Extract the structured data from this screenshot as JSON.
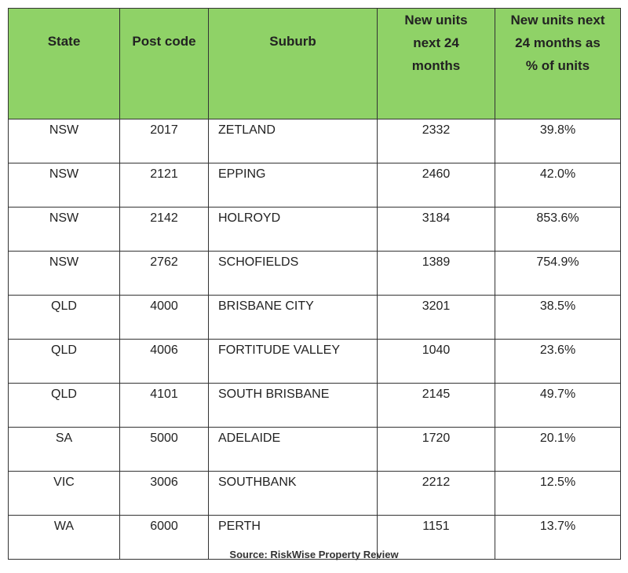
{
  "table": {
    "header": [
      [
        "State"
      ],
      [
        "Post code"
      ],
      [
        "Suburb"
      ],
      [
        "New units",
        "next 24",
        "months"
      ],
      [
        "New units next",
        "24 months as",
        "% of units"
      ]
    ],
    "rows": [
      [
        "NSW",
        "2017",
        "ZETLAND",
        "2332",
        "39.8%"
      ],
      [
        "NSW",
        "2121",
        "EPPING",
        "2460",
        "42.0%"
      ],
      [
        "NSW",
        "2142",
        "HOLROYD",
        "3184",
        "853.6%"
      ],
      [
        "NSW",
        "2762",
        "SCHOFIELDS",
        "1389",
        "754.9%"
      ],
      [
        "QLD",
        "4000",
        "BRISBANE CITY",
        "3201",
        "38.5%"
      ],
      [
        "QLD",
        "4006",
        "FORTITUDE VALLEY",
        "1040",
        "23.6%"
      ],
      [
        "QLD",
        "4101",
        "SOUTH BRISBANE",
        "2145",
        "49.7%"
      ],
      [
        "SA",
        "5000",
        "ADELAIDE",
        "1720",
        "20.1%"
      ],
      [
        "VIC",
        "3006",
        "SOUTHBANK",
        "2212",
        "12.5%"
      ],
      [
        "WA",
        "6000",
        "PERTH",
        "1151",
        "13.7%"
      ]
    ]
  },
  "source": "Source: RiskWise Property Review"
}
